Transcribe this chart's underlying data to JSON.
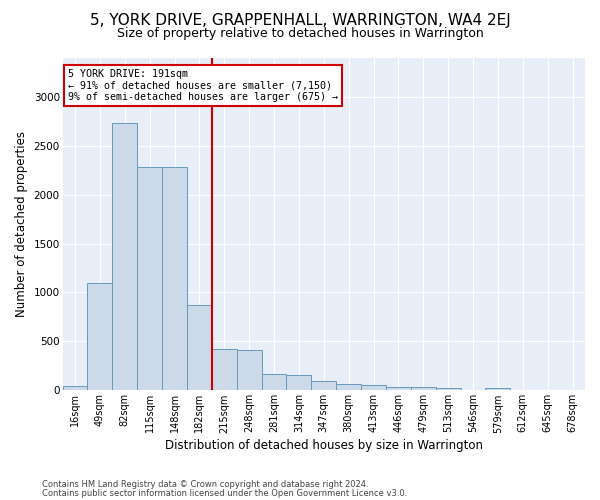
{
  "title": "5, YORK DRIVE, GRAPPENHALL, WARRINGTON, WA4 2EJ",
  "subtitle": "Size of property relative to detached houses in Warrington",
  "xlabel": "Distribution of detached houses by size in Warrington",
  "ylabel": "Number of detached properties",
  "bin_labels": [
    "16sqm",
    "49sqm",
    "82sqm",
    "115sqm",
    "148sqm",
    "182sqm",
    "215sqm",
    "248sqm",
    "281sqm",
    "314sqm",
    "347sqm",
    "380sqm",
    "413sqm",
    "446sqm",
    "479sqm",
    "513sqm",
    "546sqm",
    "579sqm",
    "612sqm",
    "645sqm",
    "678sqm"
  ],
  "bar_values": [
    50,
    1100,
    2730,
    2280,
    2280,
    870,
    420,
    415,
    170,
    160,
    100,
    65,
    55,
    35,
    30,
    20,
    5,
    25,
    5,
    5,
    5
  ],
  "bar_color": "#ccd9e8",
  "bar_edge_color": "#6699bb",
  "vline_color": "#cc0000",
  "annotation_text": "5 YORK DRIVE: 191sqm\n← 91% of detached houses are smaller (7,150)\n9% of semi-detached houses are larger (675) →",
  "annotation_box_color": "#ffffff",
  "annotation_box_edge": "#cc0000",
  "ylim": [
    0,
    3400
  ],
  "yticks": [
    0,
    500,
    1000,
    1500,
    2000,
    2500,
    3000
  ],
  "bg_color": "#e8eef8",
  "grid_color": "#ffffff",
  "footer1": "Contains HM Land Registry data © Crown copyright and database right 2024.",
  "footer2": "Contains public sector information licensed under the Open Government Licence v3.0.",
  "title_fontsize": 11,
  "subtitle_fontsize": 9,
  "xlabel_fontsize": 8.5,
  "ylabel_fontsize": 8.5
}
